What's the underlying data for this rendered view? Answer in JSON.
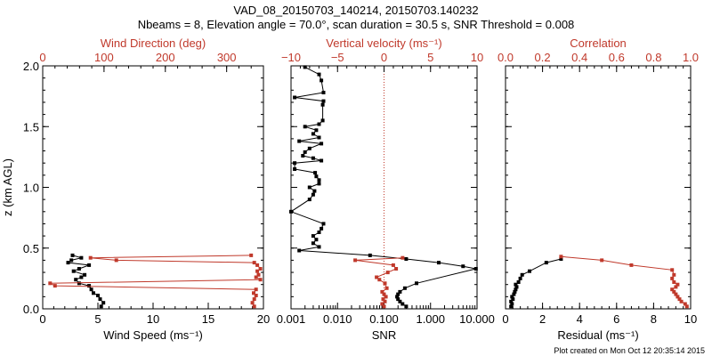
{
  "title_line1": "VAD_08_20150703_140214, 20150703.140232",
  "title_line2": "Nbeams = 8, Elevation angle = 70.0°, scan duration = 30.5 s, SNR Threshold = 0.008",
  "footer": "Plot created on Mon Oct 12 20:35:14 2015",
  "colors": {
    "black": "#000000",
    "red": "#c0392b"
  },
  "chart_data": [
    {
      "type": "line",
      "ylabel": "z (km AGL)",
      "ylim": [
        0,
        2.0
      ],
      "yticks": [
        "0.0",
        "0.5",
        "1.0",
        "1.5",
        "2.0"
      ],
      "ytick_values": [
        0,
        0.5,
        1.0,
        1.5,
        2.0
      ],
      "xlabel": "Wind Speed (ms⁻¹)",
      "xlim": [
        0,
        20
      ],
      "xticks": [
        "0",
        "5",
        "10",
        "15",
        "20"
      ],
      "xtick_values": [
        0,
        5,
        10,
        15,
        20
      ],
      "top_label": "Wind Direction (deg)",
      "top_xlim": [
        0,
        360
      ],
      "top_ticks": [
        "0",
        "100",
        "200",
        "300"
      ],
      "top_tick_values": [
        0,
        100,
        200,
        300
      ],
      "series": [
        {
          "name": "Wind Speed",
          "color": "#000000",
          "x": [
            5.3,
            5.5,
            5.2,
            5.0,
            4.6,
            4.4,
            4.2,
            3.3,
            3.0,
            3.5,
            3.8,
            2.8,
            3.3,
            4.2,
            2.3,
            2.6,
            3.5,
            2.7
          ],
          "y": [
            0.02,
            0.05,
            0.08,
            0.11,
            0.13,
            0.16,
            0.19,
            0.21,
            0.24,
            0.26,
            0.28,
            0.31,
            0.33,
            0.36,
            0.38,
            0.4,
            0.42,
            0.44
          ]
        },
        {
          "name": "Wind Direction",
          "color": "#c0392b",
          "axis": "top",
          "x": [
            345,
            342,
            345,
            348,
            344,
            348,
            20,
            12,
            355,
            348,
            352,
            350,
            355,
            350,
            345,
            120,
            78,
            340
          ],
          "y": [
            0.02,
            0.05,
            0.08,
            0.11,
            0.13,
            0.16,
            0.19,
            0.21,
            0.24,
            0.26,
            0.28,
            0.31,
            0.33,
            0.36,
            0.38,
            0.4,
            0.42,
            0.44
          ]
        }
      ]
    },
    {
      "type": "line",
      "xlabel": "SNR",
      "xscale": "log",
      "xlim": [
        0.001,
        10
      ],
      "xticks": [
        "0.001",
        "0.010",
        "0.100",
        "1.000",
        "10.000"
      ],
      "xtick_values": [
        0.001,
        0.01,
        0.1,
        1,
        10
      ],
      "top_label": "Vertical velocity (ms⁻¹)",
      "top_xlim": [
        -10,
        10
      ],
      "top_ticks": [
        "−10",
        "−5",
        "0",
        "5",
        "10"
      ],
      "top_tick_values": [
        -10,
        -5,
        0,
        5,
        10
      ],
      "reference_line": {
        "axis": "top",
        "value": 0
      },
      "series": [
        {
          "name": "SNR",
          "color": "#000000",
          "x": [
            0.3,
            0.25,
            0.22,
            0.2,
            0.19,
            0.2,
            0.22,
            0.28,
            0.5,
            9.5,
            5.0,
            1.5,
            0.3,
            0.05,
            0.0015,
            0.004,
            0.003,
            0.0035,
            0.003,
            0.004,
            0.0045,
            0.005,
            0.001,
            0.0025,
            0.003,
            0.0032,
            0.0025,
            0.004,
            0.004,
            0.0035,
            0.0033,
            0.0012,
            0.0012,
            0.0045,
            0.003,
            0.0018,
            0.002,
            0.0025,
            0.0045,
            0.0015,
            0.004,
            0.003,
            0.0035,
            0.002,
            0.004,
            0.0048,
            0.0048,
            0.005,
            0.0012,
            0.005,
            0.0045,
            0.004,
            0.002
          ],
          "y": [
            0.02,
            0.04,
            0.06,
            0.08,
            0.1,
            0.12,
            0.14,
            0.17,
            0.21,
            0.33,
            0.35,
            0.38,
            0.41,
            0.44,
            0.48,
            0.51,
            0.54,
            0.57,
            0.6,
            0.63,
            0.66,
            0.7,
            0.8,
            0.9,
            0.94,
            0.97,
            1.0,
            1.03,
            1.06,
            1.09,
            1.12,
            1.15,
            1.2,
            1.22,
            1.24,
            1.26,
            1.29,
            1.32,
            1.36,
            1.38,
            1.41,
            1.44,
            1.47,
            1.5,
            1.52,
            1.55,
            1.68,
            1.71,
            1.74,
            1.78,
            1.88,
            1.93,
            1.99
          ]
        },
        {
          "name": "Vertical velocity",
          "color": "#c0392b",
          "axis": "top",
          "x": [
            0.0,
            -0.2,
            0.1,
            -0.1,
            0.2,
            0.0,
            -0.2,
            0.3,
            0.1,
            -0.5,
            -0.8,
            0.4,
            1.3,
            1.0,
            -3.1,
            2.0
          ],
          "y": [
            0.02,
            0.04,
            0.06,
            0.08,
            0.1,
            0.12,
            0.14,
            0.17,
            0.21,
            0.24,
            0.26,
            0.3,
            0.33,
            0.36,
            0.4,
            0.42
          ]
        }
      ]
    },
    {
      "type": "line",
      "xlabel": "Residual (ms⁻¹)",
      "xlim": [
        0,
        10
      ],
      "xticks": [
        "0",
        "2",
        "4",
        "6",
        "8",
        "10"
      ],
      "xtick_values": [
        0,
        2,
        4,
        6,
        8,
        10
      ],
      "top_label": "Correlation",
      "top_xlim": [
        0,
        1
      ],
      "top_ticks": [
        "0.0",
        "0.2",
        "0.4",
        "0.6",
        "0.8",
        "1.0"
      ],
      "top_tick_values": [
        0,
        0.2,
        0.4,
        0.6,
        0.8,
        1.0
      ],
      "series": [
        {
          "name": "Residual",
          "color": "#000000",
          "x": [
            0.3,
            0.35,
            0.3,
            0.4,
            0.35,
            0.45,
            0.5,
            0.55,
            0.6,
            0.55,
            0.7,
            0.8,
            0.9,
            1.3,
            2.2,
            3.0
          ],
          "y": [
            0.02,
            0.04,
            0.06,
            0.08,
            0.1,
            0.12,
            0.14,
            0.16,
            0.18,
            0.2,
            0.22,
            0.25,
            0.28,
            0.31,
            0.38,
            0.41
          ]
        },
        {
          "name": "Correlation",
          "color": "#c0392b",
          "axis": "top",
          "x": [
            0.98,
            0.97,
            0.95,
            0.94,
            0.93,
            0.92,
            0.91,
            0.9,
            0.92,
            0.93,
            0.91,
            0.9,
            0.91,
            0.9,
            0.68,
            0.52,
            0.3
          ],
          "y": [
            0.02,
            0.04,
            0.06,
            0.08,
            0.1,
            0.12,
            0.14,
            0.16,
            0.18,
            0.2,
            0.22,
            0.25,
            0.28,
            0.32,
            0.36,
            0.4,
            0.43
          ]
        }
      ]
    }
  ]
}
